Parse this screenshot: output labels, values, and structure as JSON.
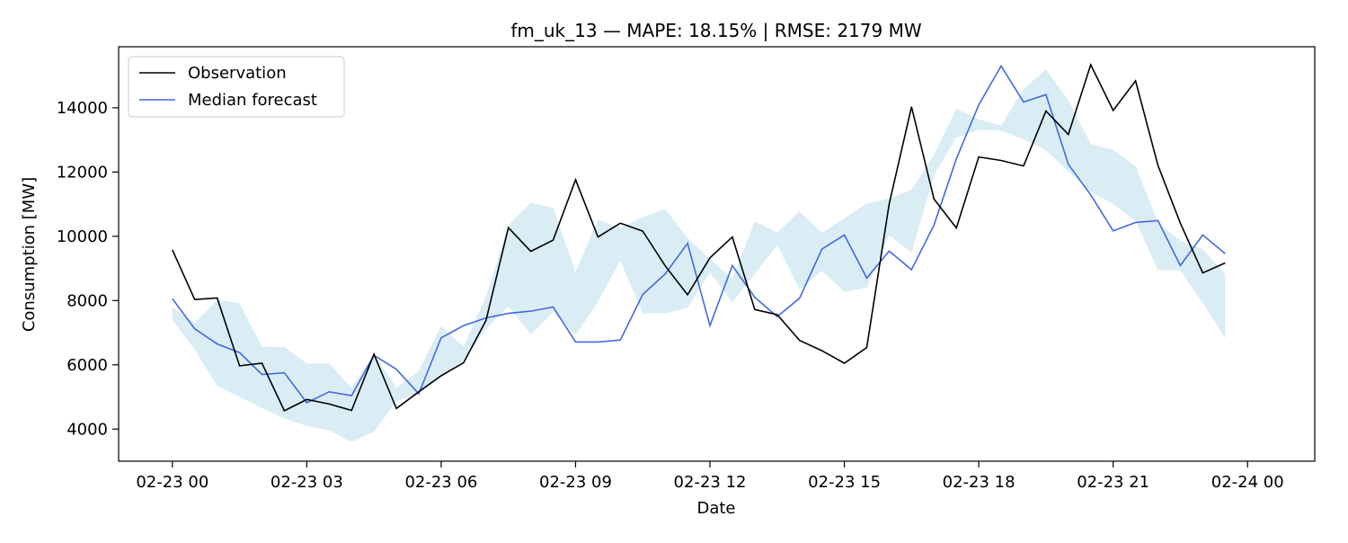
{
  "chart_data": {
    "type": "line",
    "title": "fm_uk_13 — MAPE: 18.15% | RMSE: 2179 MW",
    "xlabel": "Date",
    "ylabel": "Consumption [MW]",
    "x_tick_labels": [
      "02-23 00",
      "02-23 03",
      "02-23 06",
      "02-23 09",
      "02-23 12",
      "02-23 15",
      "02-23 18",
      "02-23 21",
      "02-24 00"
    ],
    "y_ticks": [
      4000,
      6000,
      8000,
      10000,
      12000,
      14000
    ],
    "y_tick_labels": [
      "4000",
      "6000",
      "8000",
      "10000",
      "12000",
      "14000"
    ],
    "xlim_hours": [
      -1.2,
      25.5
    ],
    "ylim": [
      3000,
      15900
    ],
    "grid": false,
    "legend_position": "top-left",
    "colors": {
      "observation": "#000000",
      "median": "#4169e1",
      "band": "#add8e6"
    },
    "series": [
      {
        "name": "Observation",
        "x": [
          "02-23 00:00",
          "02-23 00:30",
          "02-23 01:00",
          "02-23 01:30",
          "02-23 02:00",
          "02-23 02:30",
          "02-23 03:00",
          "02-23 03:30",
          "02-23 04:00",
          "02-23 04:30",
          "02-23 05:00",
          "02-23 05:30",
          "02-23 06:00",
          "02-23 06:30",
          "02-23 07:00",
          "02-23 07:30",
          "02-23 08:00",
          "02-23 08:30",
          "02-23 09:00",
          "02-23 09:30",
          "02-23 10:00",
          "02-23 10:30",
          "02-23 11:00",
          "02-23 11:30",
          "02-23 12:00",
          "02-23 12:30",
          "02-23 13:00",
          "02-23 13:30",
          "02-23 14:00",
          "02-23 14:30",
          "02-23 15:00",
          "02-23 15:30",
          "02-23 16:00",
          "02-23 16:30",
          "02-23 17:00",
          "02-23 17:30",
          "02-23 18:00",
          "02-23 18:30",
          "02-23 19:00",
          "02-23 19:30",
          "02-23 20:00",
          "02-23 20:30",
          "02-23 21:00",
          "02-23 21:30",
          "02-23 22:00",
          "02-23 22:30",
          "02-23 23:00",
          "02-23 23:30"
        ],
        "values": [
          9580,
          8030,
          8080,
          5970,
          6050,
          4570,
          4920,
          4780,
          4580,
          6330,
          4640,
          5160,
          5660,
          6060,
          7380,
          10270,
          9530,
          9880,
          11760,
          9980,
          10410,
          10160,
          9080,
          8180,
          9330,
          9980,
          7720,
          7560,
          6760,
          6440,
          6050,
          6540,
          11000,
          14030,
          11160,
          10260,
          12470,
          12360,
          12190,
          13900,
          13170,
          15340,
          13920,
          14840,
          12210,
          10410,
          8860,
          9170
        ]
      },
      {
        "name": "Median forecast",
        "x": [
          "02-23 00:00",
          "02-23 00:30",
          "02-23 01:00",
          "02-23 01:30",
          "02-23 02:00",
          "02-23 02:30",
          "02-23 03:00",
          "02-23 03:30",
          "02-23 04:00",
          "02-23 04:30",
          "02-23 05:00",
          "02-23 05:30",
          "02-23 06:00",
          "02-23 06:30",
          "02-23 07:00",
          "02-23 07:30",
          "02-23 08:00",
          "02-23 08:30",
          "02-23 09:00",
          "02-23 09:30",
          "02-23 10:00",
          "02-23 10:30",
          "02-23 11:00",
          "02-23 11:30",
          "02-23 12:00",
          "02-23 12:30",
          "02-23 13:00",
          "02-23 13:30",
          "02-23 14:00",
          "02-23 14:30",
          "02-23 15:00",
          "02-23 15:30",
          "02-23 16:00",
          "02-23 16:30",
          "02-23 17:00",
          "02-23 17:30",
          "02-23 18:00",
          "02-23 18:30",
          "02-23 19:00",
          "02-23 19:30",
          "02-23 20:00",
          "02-23 20:30",
          "02-23 21:00",
          "02-23 21:30",
          "02-23 22:00",
          "02-23 22:30",
          "02-23 23:00",
          "02-23 23:30"
        ],
        "values": [
          8060,
          7120,
          6650,
          6380,
          5700,
          5750,
          4820,
          5160,
          5040,
          6300,
          5860,
          5100,
          6840,
          7220,
          7460,
          7600,
          7670,
          7800,
          6710,
          6710,
          6770,
          8190,
          8830,
          9780,
          7220,
          9090,
          8100,
          7500,
          8070,
          9600,
          10040,
          8700,
          9540,
          8960,
          10350,
          12410,
          14090,
          15300,
          14180,
          14410,
          12240,
          11290,
          10170,
          10430,
          10490,
          9090,
          10040,
          9460
        ]
      }
    ],
    "band": {
      "lower": [
        7400,
        6470,
        5340,
        5000,
        4660,
        4330,
        4100,
        3960,
        3600,
        3920,
        4870,
        5130,
        5590,
        6140,
        7100,
        7820,
        6940,
        7640,
        6930,
        7960,
        9240,
        7600,
        7600,
        7770,
        8870,
        7950,
        8830,
        9730,
        8340,
        8930,
        8270,
        8400,
        10030,
        9500,
        11890,
        13070,
        13310,
        13290,
        13020,
        12680,
        12020,
        11380,
        11000,
        10480,
        8950,
        8940,
        7920,
        6830
      ],
      "upper": [
        7800,
        7300,
        8020,
        7920,
        6560,
        6550,
        6040,
        6040,
        5280,
        6330,
        5290,
        5810,
        7210,
        6570,
        8130,
        10340,
        11060,
        10880,
        8900,
        10520,
        10260,
        10600,
        10850,
        9950,
        9300,
        8680,
        10470,
        10120,
        10780,
        10110,
        10560,
        11020,
        11180,
        11460,
        12530,
        13980,
        13640,
        13450,
        14580,
        15200,
        14220,
        12880,
        12690,
        12190,
        10430,
        9860,
        9600,
        8820
      ]
    }
  },
  "legend": {
    "observation_label": "Observation",
    "median_label": "Median forecast"
  }
}
